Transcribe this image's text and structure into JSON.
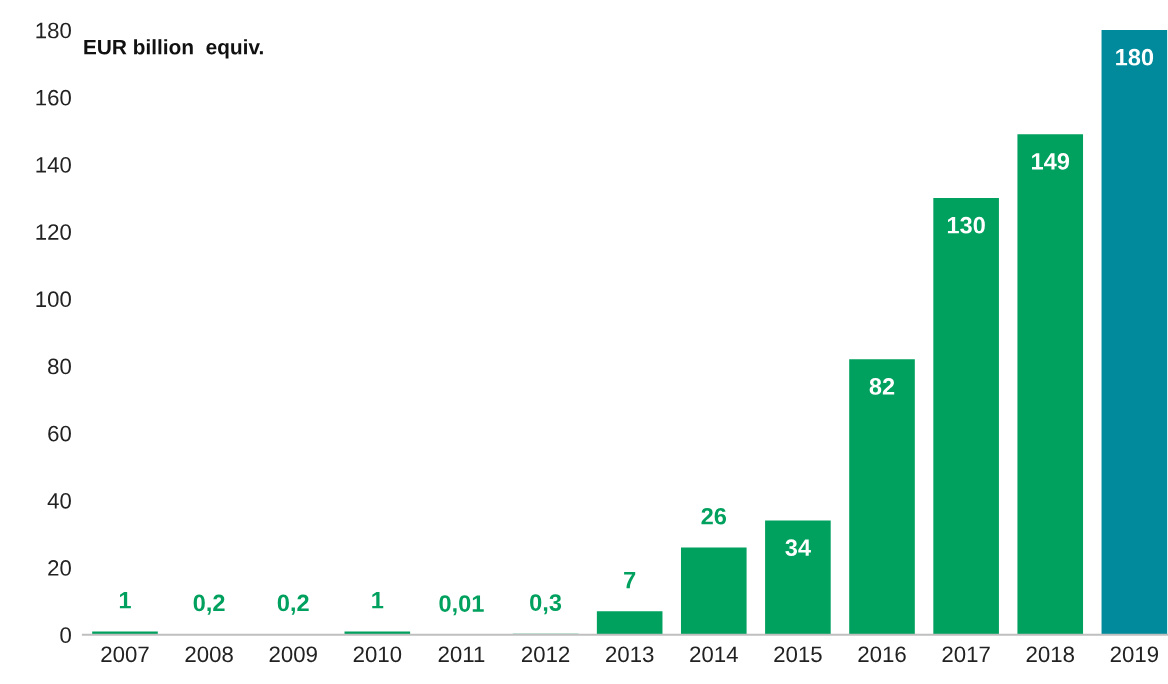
{
  "chart_data": {
    "type": "bar",
    "annotations": [
      "EUR billion  equiv."
    ],
    "categories": [
      "2007",
      "2008",
      "2009",
      "2010",
      "2011",
      "2012",
      "2013",
      "2014",
      "2015",
      "2016",
      "2017",
      "2018",
      "2019"
    ],
    "values": [
      1,
      0.2,
      0.2,
      1,
      0.01,
      0.3,
      7,
      26,
      34,
      82,
      130,
      149,
      180
    ],
    "value_labels": [
      "1",
      "0,2",
      "0,2",
      "1",
      "0,01",
      "0,3",
      "7",
      "26",
      "34",
      "82",
      "130",
      "149",
      "180"
    ],
    "colors": [
      "#00a05e",
      "#00a05e",
      "#00a05e",
      "#00a05e",
      "#00a05e",
      "#00a05e",
      "#00a05e",
      "#00a05e",
      "#00a05e",
      "#00a05e",
      "#00a05e",
      "#00a05e",
      "#008a9b"
    ],
    "ylim": [
      0,
      180
    ],
    "yticks": [
      0,
      20,
      40,
      60,
      80,
      100,
      120,
      140,
      160,
      180
    ],
    "grid": false,
    "legend": false
  }
}
